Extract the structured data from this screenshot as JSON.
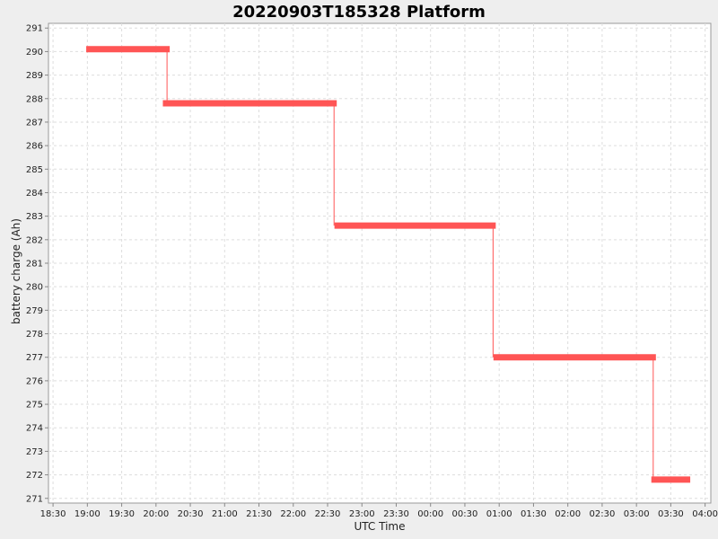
{
  "chart_data": {
    "type": "line",
    "title": "20220903T185328 Platform",
    "xlabel": "UTC Time",
    "ylabel": "battery charge (Ah)",
    "x_ticks": [
      "18:30",
      "19:00",
      "19:30",
      "20:00",
      "20:30",
      "21:00",
      "21:30",
      "22:00",
      "22:30",
      "23:00",
      "23:30",
      "00:00",
      "00:30",
      "01:00",
      "01:30",
      "02:00",
      "02:30",
      "03:00",
      "03:30",
      "04:00"
    ],
    "xlim": [
      "18:26",
      "04:05"
    ],
    "ylim": [
      270.8,
      291.2
    ],
    "y_ticks": [
      271,
      272,
      273,
      274,
      275,
      276,
      277,
      278,
      279,
      280,
      281,
      282,
      283,
      284,
      285,
      286,
      287,
      288,
      289,
      290,
      291
    ],
    "grid": true,
    "colors": {
      "series": "#ff5555",
      "grid": "#dddddd",
      "plot_bg": "#ffffff"
    },
    "series": [
      {
        "steps": [
          {
            "start": "18:59",
            "end": "20:12",
            "value": 290.1
          },
          {
            "start": "20:06",
            "end": "22:38",
            "value": 287.8
          },
          {
            "start": "22:36",
            "end": "00:57",
            "value": 282.6
          },
          {
            "start": "00:55",
            "end": "03:17",
            "value": 277.0
          },
          {
            "start": "03:13",
            "end": "03:47",
            "value": 271.8
          }
        ]
      }
    ]
  }
}
